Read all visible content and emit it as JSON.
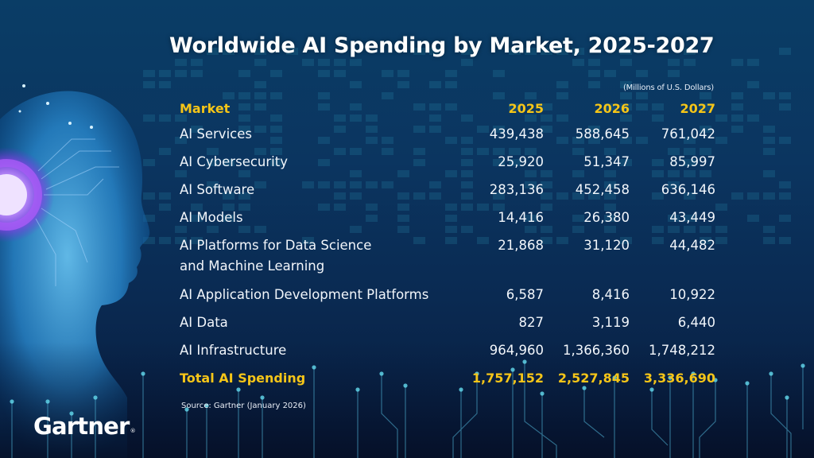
{
  "chart_data": {
    "type": "table",
    "title": "Worldwide AI Spending by Market, 2025-2027",
    "units_note": "(Millions of U.S. Dollars)",
    "columns": [
      "Market",
      "2025",
      "2026",
      "2027"
    ],
    "rows": [
      {
        "market": "AI Services",
        "values": [
          "439,438",
          "588,645",
          "761,042"
        ]
      },
      {
        "market": "AI Cybersecurity",
        "values": [
          "25,920",
          "51,347",
          "85,997"
        ]
      },
      {
        "market": "AI Software",
        "values": [
          "283,136",
          "452,458",
          "636,146"
        ]
      },
      {
        "market": "AI Models",
        "values": [
          "14,416",
          "26,380",
          "43,449"
        ]
      },
      {
        "market": "AI Platforms for Data Science and Machine Learning",
        "market_lines": [
          "AI Platforms for Data Science",
          "and Machine Learning"
        ],
        "values": [
          "21,868",
          "31,120",
          "44,482"
        ]
      },
      {
        "market": "AI Application Development Platforms",
        "values": [
          "6,587",
          "8,416",
          "10,922"
        ]
      },
      {
        "market": "AI Data",
        "values": [
          "827",
          "3,119",
          "6,440"
        ]
      },
      {
        "market": "AI Infrastructure",
        "values": [
          "964,960",
          "1,366,360",
          "1,748,212"
        ]
      }
    ],
    "total": {
      "market": "Total AI Spending",
      "values": [
        "1,757,152",
        "2,527,845",
        "3,336,690"
      ]
    },
    "source": "Source: Gartner (January 2026)"
  },
  "branding": {
    "logo_text": "Gartner",
    "logo_mark": "®",
    "decorative_image": "ai-head-illustration-icon"
  },
  "colors": {
    "header_accent": "#f5c518",
    "text": "#ffffff",
    "background_top": "#0a3d66",
    "background_bottom": "#071a3a",
    "glow_cyan": "#4fc3e8",
    "glow_purple": "#9b5cf0"
  }
}
